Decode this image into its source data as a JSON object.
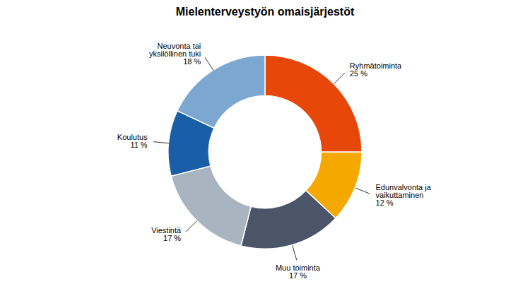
{
  "chart_data": {
    "type": "pie",
    "title": "Mielenterveystyön omaisjärjestöt",
    "categories": [
      "Ryhmätoiminta",
      "Edunvalvonta ja\nvaikuttaminen",
      "Muu toiminta",
      "Viestintä",
      "Koulutus",
      "Neuvonta tai\nyksilöllinen tuki"
    ],
    "values": [
      25,
      12,
      17,
      17,
      11,
      18
    ],
    "value_labels": [
      "25 %",
      "12 %",
      "17 %",
      "17 %",
      "11 %",
      "18 %"
    ],
    "colors": [
      "#E8470A",
      "#F5A800",
      "#4A5568",
      "#A8B4C0",
      "#1A5EA8",
      "#7BA7D0"
    ],
    "data_labels": true
  }
}
